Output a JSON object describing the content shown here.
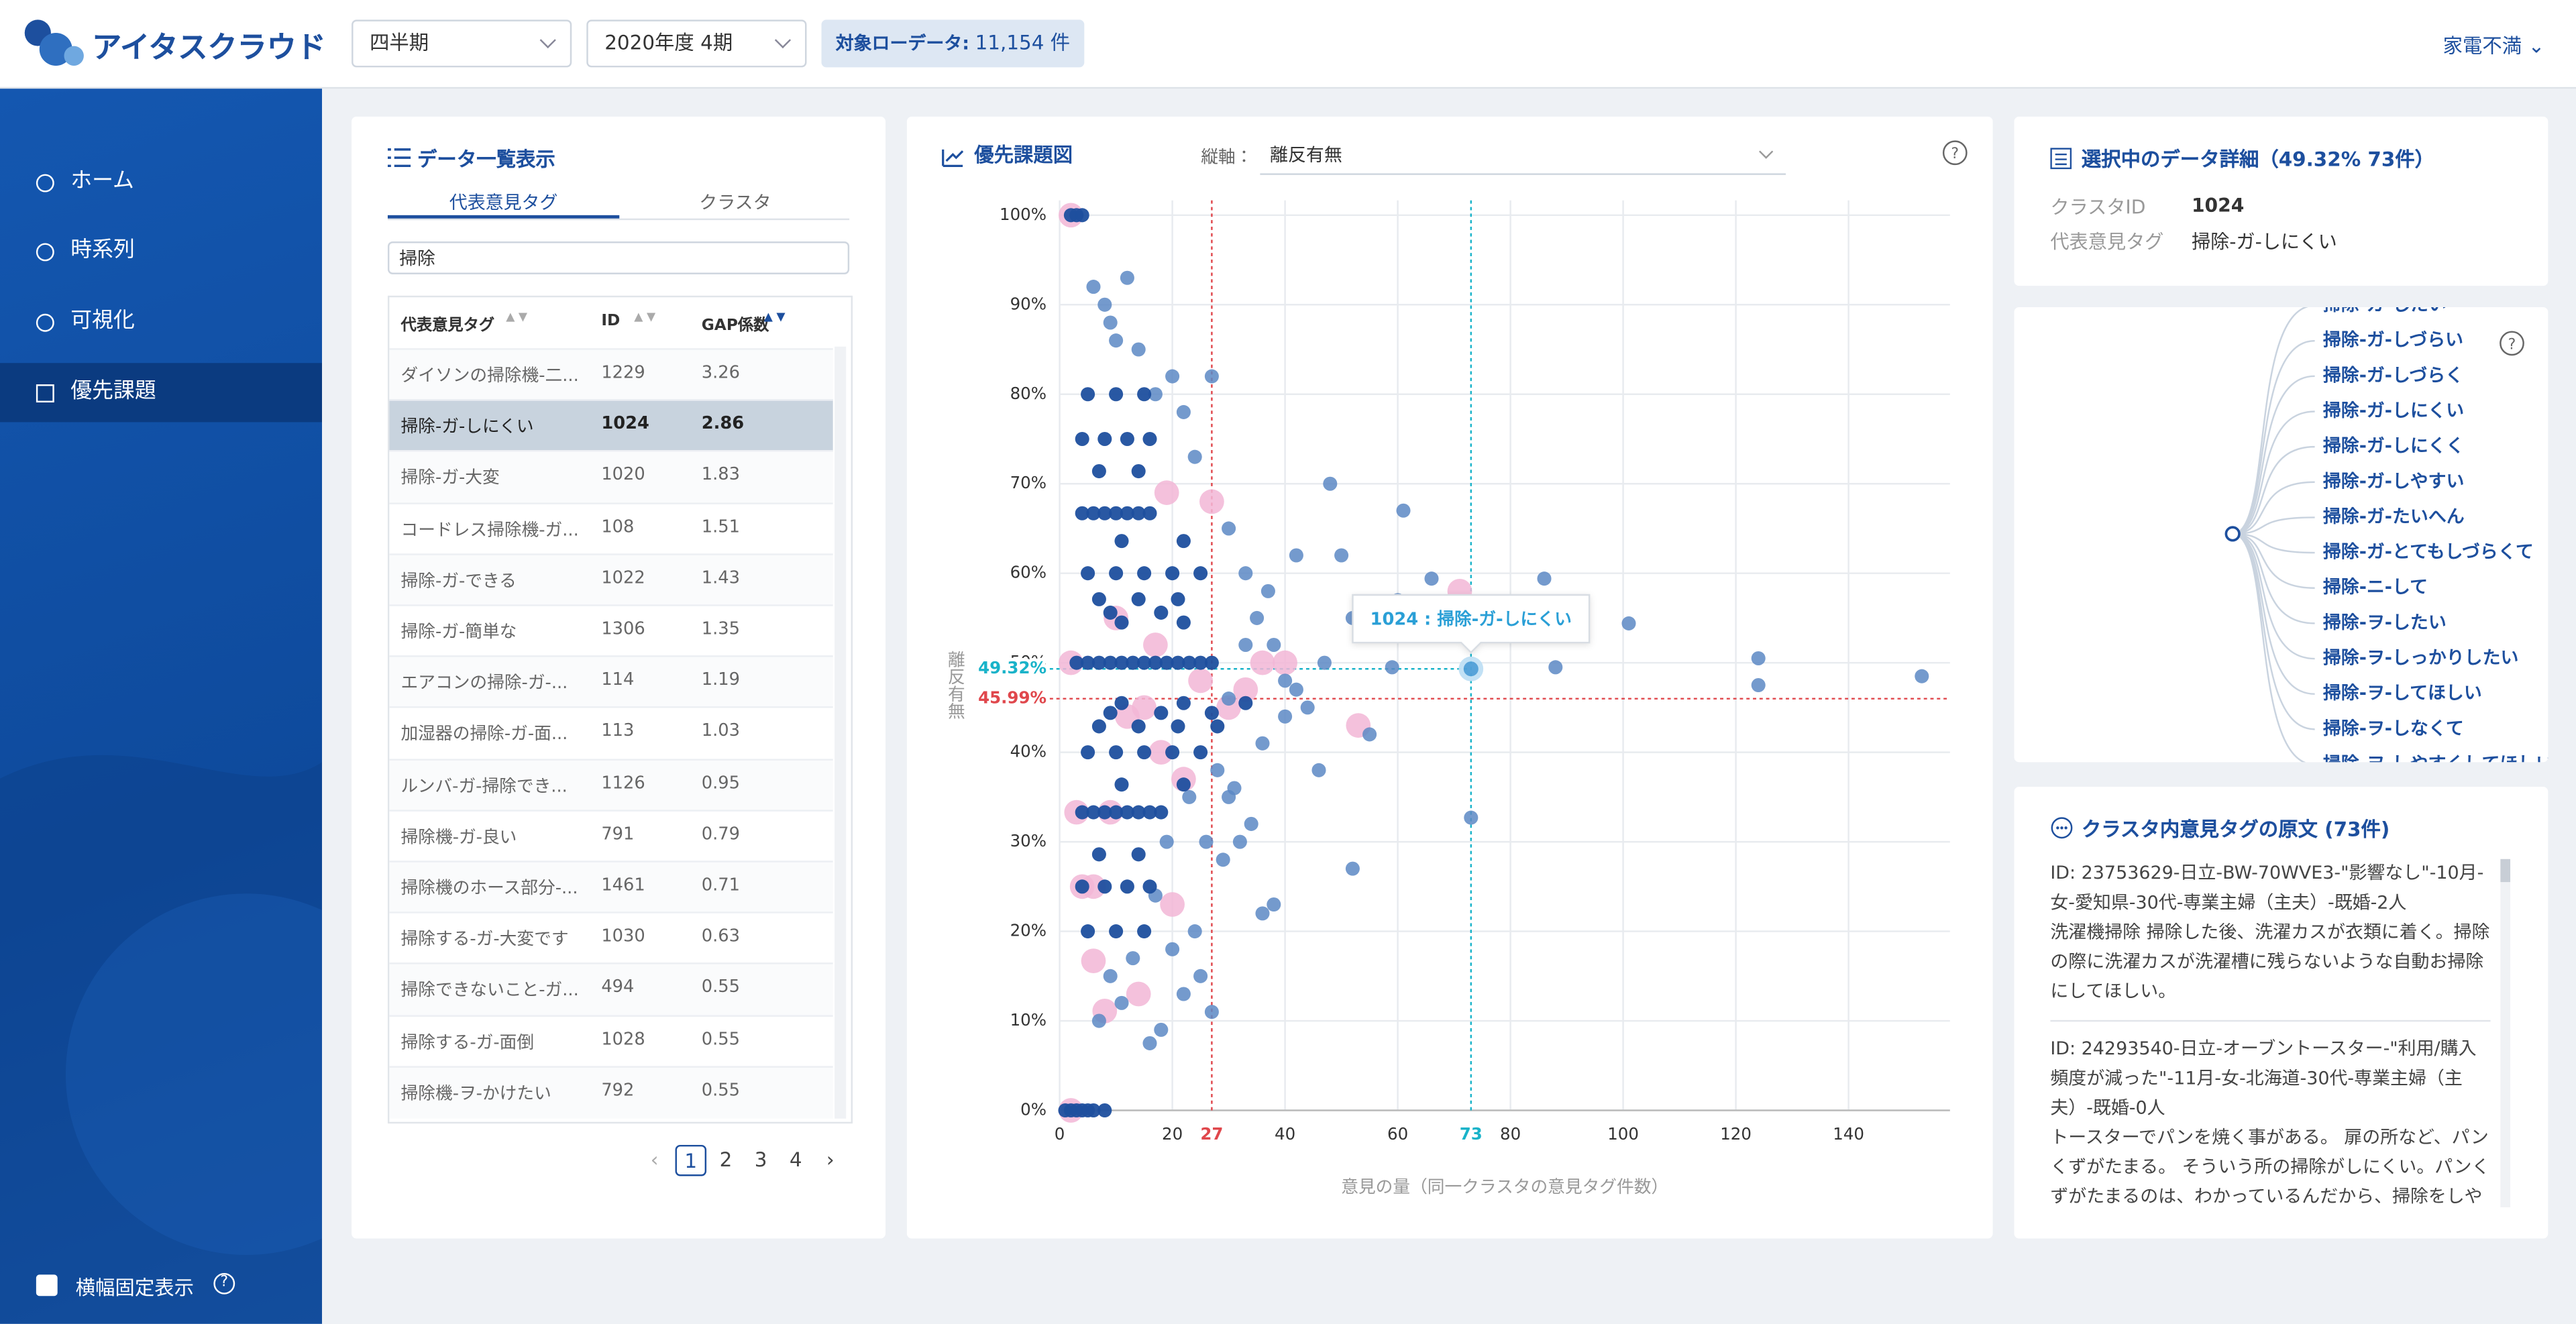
{
  "header": {
    "logo": "アイタスクラウド",
    "period_type": "四半期",
    "period": "2020年度 4期",
    "badge_label": "対象ローデータ:",
    "badge_value": "11,154 件",
    "account": "家電不満"
  },
  "sidebar": {
    "items": [
      "ホーム",
      "時系列",
      "可視化",
      "優先課題"
    ],
    "footer": "横幅固定表示"
  },
  "list_panel": {
    "title": "データ一覧表示",
    "tabs": [
      "代表意見タグ",
      "クラスタ"
    ],
    "search": "掃除",
    "columns": [
      "代表意見タグ",
      "ID",
      "GAP係数"
    ],
    "rows": [
      [
        "ダイソンの掃除機-二...",
        1229,
        3.26
      ],
      [
        "掃除-ガ-しにくい",
        1024,
        2.86
      ],
      [
        "掃除-ガ-大変",
        1020,
        1.83
      ],
      [
        "コードレス掃除機-ガ...",
        108,
        1.51
      ],
      [
        "掃除-ガ-できる",
        1022,
        1.43
      ],
      [
        "掃除-ガ-簡単な",
        1306,
        1.35
      ],
      [
        "エアコンの掃除-ガ-...",
        114,
        1.19
      ],
      [
        "加湿器の掃除-ガ-面...",
        113,
        1.03
      ],
      [
        "ルンバ-ガ-掃除でき...",
        1126,
        0.95
      ],
      [
        "掃除機-ガ-良い",
        791,
        0.79
      ],
      [
        "掃除機のホース部分-...",
        1461,
        0.71
      ],
      [
        "掃除する-ガ-大変です",
        1030,
        0.63
      ],
      [
        "掃除できないこと-ガ...",
        494,
        0.55
      ],
      [
        "掃除する-ガ-面倒",
        1028,
        0.55
      ],
      [
        "掃除機-ヲ-かけたい",
        792,
        0.55
      ]
    ],
    "pages": [
      1,
      2,
      3,
      4
    ]
  },
  "chart_data": {
    "type": "scatter",
    "title": "優先課題図",
    "y_selector_label": "縦軸：",
    "y_selector": "離反有無",
    "ylabel": "離反有無",
    "xlabel": "意見の量（同一クラスタの意見タグ件数）",
    "xlim": [
      0,
      158
    ],
    "ylim": [
      0,
      100
    ],
    "xticks": [
      0,
      20,
      40,
      60,
      80,
      100,
      120,
      140
    ],
    "yticks": [
      {
        "value": 0,
        "label": "0%"
      },
      {
        "value": 10,
        "label": "10%"
      },
      {
        "value": 20,
        "label": "20%"
      },
      {
        "value": 30,
        "label": "30%"
      },
      {
        "value": 40,
        "label": "40%"
      },
      {
        "value": 50,
        "label": "50%"
      },
      {
        "value": 60,
        "label": "60%"
      },
      {
        "value": 70,
        "label": "70%"
      },
      {
        "value": 80,
        "label": "80%"
      },
      {
        "value": 90,
        "label": "90%"
      },
      {
        "value": 100,
        "label": "100%"
      }
    ],
    "grid": true,
    "series": [
      {
        "color": "#f2b6d6",
        "x": [
          2,
          2,
          2,
          3,
          4,
          6,
          8,
          9,
          14,
          20,
          27,
          19,
          10,
          15,
          18,
          22,
          30,
          36,
          40,
          53,
          71,
          17,
          12,
          25,
          33,
          6
        ],
        "values": [
          100,
          0,
          50,
          33.3,
          25,
          16.7,
          11.1,
          33.3,
          13,
          23,
          68,
          69,
          55,
          45,
          40,
          37,
          45,
          50,
          50,
          43,
          58,
          52,
          44,
          48,
          47,
          25
        ]
      },
      {
        "color": "#5c88c4",
        "x": [
          6,
          8,
          9,
          10,
          12,
          14,
          17,
          20,
          22,
          24,
          27,
          30,
          33,
          35,
          37,
          38,
          40,
          42,
          44,
          46,
          47,
          48,
          50,
          52,
          55,
          59,
          60,
          61,
          66,
          86,
          88,
          101,
          124,
          124,
          153,
          73,
          52,
          38,
          36,
          32,
          30,
          28,
          25,
          27,
          22,
          18,
          16,
          20,
          24,
          31,
          34,
          26,
          29,
          36,
          40,
          42,
          33,
          30,
          23,
          19,
          17,
          13,
          11,
          9,
          7
        ],
        "values": [
          92,
          90,
          88,
          86,
          93,
          85,
          80,
          82,
          78,
          73,
          82,
          65,
          60,
          55,
          58,
          52,
          48,
          62,
          45,
          38,
          50,
          70,
          62,
          55,
          42,
          49.5,
          57,
          67,
          59.4,
          59.4,
          49.5,
          54.4,
          50.5,
          47.5,
          48.5,
          32.7,
          27,
          23,
          22,
          30,
          35,
          38,
          15,
          11,
          13,
          9,
          7.5,
          18,
          20,
          36,
          32,
          30,
          28,
          41,
          44,
          47,
          52,
          46,
          35,
          30,
          24,
          17,
          12,
          15,
          10
        ]
      },
      {
        "color": "#1d4f9e",
        "x": [
          2,
          3,
          4,
          1,
          2,
          3,
          4,
          5,
          6,
          8,
          3,
          5,
          7,
          9,
          11,
          13,
          15,
          17,
          19,
          21,
          23,
          25,
          27,
          4,
          6,
          8,
          10,
          12,
          14,
          16,
          4,
          6,
          8,
          10,
          12,
          14,
          16,
          18,
          4,
          8,
          12,
          16,
          4,
          8,
          12,
          16,
          5,
          10,
          15,
          20,
          25,
          5,
          10,
          15,
          20,
          25,
          5,
          10,
          15,
          5,
          10,
          15,
          7,
          14,
          21,
          7,
          14,
          21,
          28,
          9,
          18,
          27,
          9,
          18,
          7,
          14,
          7,
          14,
          11,
          22,
          11,
          22,
          11,
          22,
          33,
          11,
          22
        ],
        "values": [
          100,
          100,
          100,
          0,
          0,
          0,
          0,
          0,
          0,
          0,
          50,
          50,
          50,
          50,
          50,
          50,
          50,
          50,
          50,
          50,
          50,
          50,
          50,
          66.7,
          66.7,
          66.7,
          66.7,
          66.7,
          66.7,
          66.7,
          33.3,
          33.3,
          33.3,
          33.3,
          33.3,
          33.3,
          33.3,
          33.3,
          75,
          75,
          75,
          75,
          25,
          25,
          25,
          25,
          60,
          60,
          60,
          60,
          60,
          40,
          40,
          40,
          40,
          40,
          80,
          80,
          80,
          20,
          20,
          20,
          57.1,
          57.1,
          57.1,
          42.9,
          42.9,
          42.9,
          42.9,
          44.4,
          44.4,
          44.4,
          55.6,
          55.6,
          71.4,
          71.4,
          28.6,
          28.6,
          36.4,
          36.4,
          63.6,
          63.6,
          45.5,
          45.5,
          45.5,
          54.5,
          54.5
        ]
      },
      {
        "color": "#4f9fd8",
        "x": [
          73
        ],
        "values": [
          49.32
        ]
      }
    ],
    "reference_lines": [
      {
        "axis": "x",
        "value": 27,
        "color": "#e0474c"
      },
      {
        "axis": "x",
        "value": 73,
        "color": "#19b3c9"
      },
      {
        "axis": "y",
        "value": 45.99,
        "label": "45.99%",
        "color": "#e0474c"
      },
      {
        "axis": "y",
        "value": 49.32,
        "label": "49.32%",
        "color": "#19b3c9"
      }
    ],
    "annotation": "1024 : 掃除-ガ-しにくい"
  },
  "detail": {
    "title": "選択中のデータ詳細（49.32% 73件）",
    "fields": [
      [
        "クラスタID",
        "1024"
      ],
      [
        "代表意見タグ",
        "掃除-ガ-しにくい"
      ]
    ]
  },
  "tree": {
    "leaves": [
      "掃除-ガ-したい",
      "掃除-ガ-しづらい",
      "掃除-ガ-しづらく",
      "掃除-ガ-しにくい",
      "掃除-ガ-しにくく",
      "掃除-ガ-しやすい",
      "掃除-ガ-たいへん",
      "掃除-ガ-とてもしづらくて",
      "掃除-ニ-して",
      "掃除-ヲ-したい",
      "掃除-ヲ-しっかりしたい",
      "掃除-ヲ-してほしい",
      "掃除-ヲ-しなくて",
      "掃除-ヲ-しやすくしてほしい"
    ]
  },
  "comments": {
    "title": "クラスタ内意見タグの原文 (73件)",
    "items": [
      {
        "id": "ID: 23753629-日立-BW-70WVE3-\"影響なし\"-10月-女-愛知県-30代-専業主婦（主夫）-既婚-2人",
        "text": "洗濯機掃除 掃除した後、洗濯カスが衣類に着く。掃除の際に洗濯カスが洗濯槽に残らないような自動お掃除にしてほしい。"
      },
      {
        "id": "ID: 24293540-日立-オーブントースター-\"利用/購入頻度が減った\"-11月-女-北海道-30代-専業主婦（主夫）-既婚-0人",
        "text": "トースターでパンを焼く事がある。 扉の所など、パンくずがたまる。 そういう所の掃除がしにくい。パンくずがたまるのは、わかっているんだから、掃除をしやすいように配慮して欲しい。 そういう所を"
      }
    ]
  }
}
